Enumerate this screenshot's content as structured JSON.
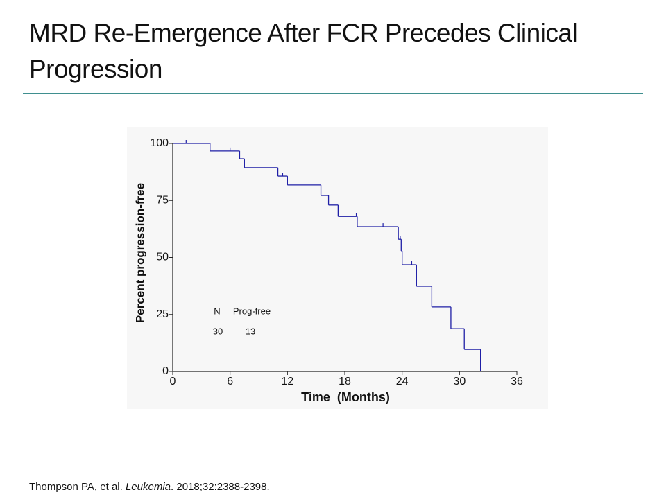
{
  "slide": {
    "title": "MRD Re-Emergence After FCR Precedes Clinical Progression",
    "citation": [
      "Thompson PA, et al. ",
      "Leukemia",
      ". 2018;32:2388-2398."
    ]
  },
  "chart_data": {
    "type": "step",
    "xlabel": "Time  (Months)",
    "ylabel": "Percent progression-free",
    "xlim": [
      0,
      36
    ],
    "ylim": [
      0,
      100
    ],
    "xticks": [
      0,
      6,
      12,
      18,
      24,
      30,
      36
    ],
    "yticks": [
      0,
      25,
      50,
      75,
      100
    ],
    "series": [
      {
        "color": "#1f1fa6",
        "x": [
          0,
          3.9,
          7.0,
          7.5,
          11.0,
          12.0,
          15.5,
          16.3,
          17.3,
          19.3,
          23.6,
          23.9,
          24.0,
          25.5,
          27.1,
          29.1,
          30.5,
          32.2
        ],
        "y": [
          100,
          96.7,
          93.3,
          89.4,
          85.7,
          81.8,
          77.2,
          73,
          68,
          63.5,
          58,
          52.9,
          46.8,
          37.4,
          28.3,
          18.8,
          9.7,
          0
        ]
      }
    ],
    "censored": {
      "x": [
        1.4,
        6.0,
        11.5,
        19.2,
        22.0,
        23.8,
        25.0
      ],
      "y": [
        100,
        96.7,
        85.7,
        68,
        63.5,
        58,
        46.8
      ]
    },
    "annotation": {
      "headers": [
        "N",
        "Prog-free"
      ],
      "rows": [
        [
          30,
          13
        ]
      ]
    }
  }
}
